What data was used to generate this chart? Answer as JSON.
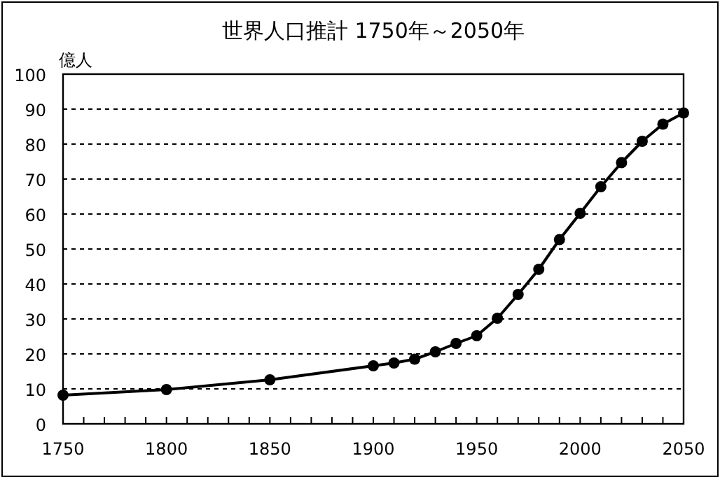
{
  "chart_data": {
    "type": "line",
    "title": "世界人口推計 1750年～2050年",
    "ylabel": "億人",
    "x": [
      1750,
      1800,
      1850,
      1900,
      1910,
      1920,
      1930,
      1940,
      1950,
      1960,
      1970,
      1980,
      1990,
      2000,
      2010,
      2020,
      2030,
      2040,
      2050
    ],
    "series": [
      {
        "color": "#000000",
        "values": [
          8.2,
          9.8,
          12.6,
          16.6,
          17.4,
          18.5,
          20.6,
          23.0,
          25.2,
          30.2,
          37.0,
          44.2,
          52.7,
          60.2,
          67.8,
          74.7,
          80.8,
          85.7,
          88.9
        ]
      }
    ],
    "xlim": [
      1750,
      2050
    ],
    "xticks": [
      1750,
      {
        "value": 1760,
        "label": null
      },
      {
        "value": 1770,
        "label": null
      },
      {
        "value": 1780,
        "label": null
      },
      {
        "value": 1790,
        "label": null
      },
      1800,
      {
        "value": 1810,
        "label": null
      },
      {
        "value": 1820,
        "label": null
      },
      {
        "value": 1830,
        "label": null
      },
      {
        "value": 1840,
        "label": null
      },
      1850,
      {
        "value": 1860,
        "label": null
      },
      {
        "value": 1870,
        "label": null
      },
      {
        "value": 1880,
        "label": null
      },
      {
        "value": 1890,
        "label": null
      },
      1900,
      {
        "value": 1910,
        "label": null
      },
      {
        "value": 1920,
        "label": null
      },
      {
        "value": 1930,
        "label": null
      },
      {
        "value": 1940,
        "label": null
      },
      1950,
      {
        "value": 1960,
        "label": null
      },
      {
        "value": 1970,
        "label": null
      },
      {
        "value": 1980,
        "label": null
      },
      {
        "value": 1990,
        "label": null
      },
      2000,
      {
        "value": 2010,
        "label": null
      },
      {
        "value": 2020,
        "label": null
      },
      {
        "value": 2030,
        "label": null
      },
      {
        "value": 2040,
        "label": null
      },
      2050
    ],
    "ylim": [
      0,
      100
    ],
    "yticks": [
      0,
      10,
      20,
      30,
      40,
      50,
      60,
      70,
      80,
      90,
      100
    ],
    "grid": "y",
    "marker": "circle",
    "line_style": "solid"
  }
}
